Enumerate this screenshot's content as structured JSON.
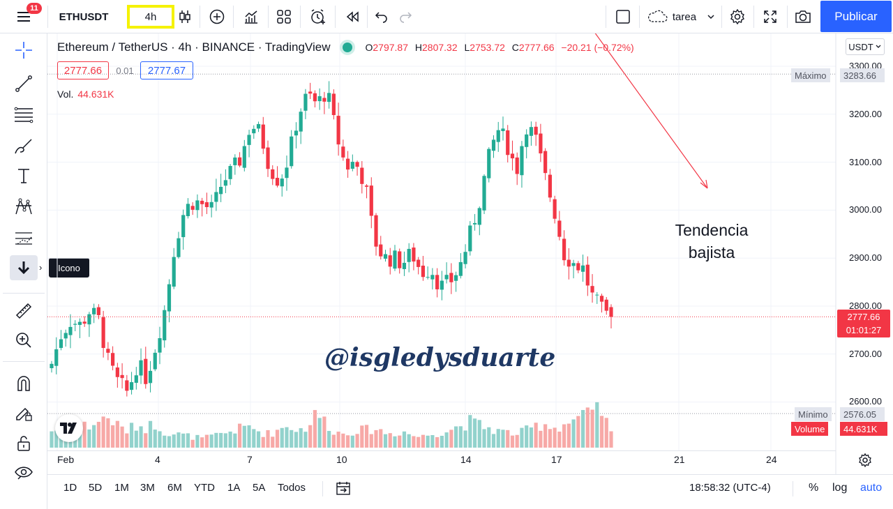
{
  "header": {
    "notification_count": "11",
    "symbol": "ETHUSDT",
    "interval": "4h",
    "template": "tarea",
    "publish_label": "Publicar"
  },
  "legend": {
    "title": "Ethereum / TetherUS · 4h · BINANCE · TradingView",
    "open_label": "O",
    "open": "2797.87",
    "high_label": "H",
    "high": "2807.32",
    "low_label": "L",
    "low": "2753.72",
    "close_label": "C",
    "close": "2777.66",
    "change": "−20.21 (−0.72%)",
    "bid": "2777.66",
    "spread": "0.01",
    "ask": "2777.67",
    "volume_label": "Vol.",
    "volume": "44.631K"
  },
  "left_toolbar": {
    "tooltip": "Icono"
  },
  "annotation": {
    "trend_line1": "Tendencia",
    "trend_line2": "bajista",
    "watermark": "@isgledysduarte"
  },
  "price_axis": {
    "currency": "USDT",
    "ticks": [
      "3300.00",
      "3200.00",
      "3100.00",
      "3000.00",
      "2900.00",
      "2800.00",
      "2700.00",
      "2600.00"
    ],
    "max_label": "Máximo",
    "max_value": "3283.66",
    "min_label": "Mínimo",
    "min_value": "2576.05",
    "current_price": "2777.66",
    "countdown": "01:01:27",
    "volume_label": "Volume",
    "volume_value": "44.631K"
  },
  "time_axis": {
    "labels": [
      "Feb",
      "4",
      "7",
      "10",
      "14",
      "17",
      "21",
      "24"
    ]
  },
  "bottom_bar": {
    "ranges": [
      "1D",
      "5D",
      "1M",
      "3M",
      "6M",
      "YTD",
      "1A",
      "5A",
      "Todos"
    ],
    "clock": "18:58:32 (UTC-4)",
    "percent": "%",
    "log": "log",
    "auto": "auto"
  },
  "colors": {
    "up": "#22ab94",
    "down": "#f23645",
    "up_volume": "#92d2cc",
    "down_volume": "#f7a9a7",
    "accent": "#2962ff",
    "interval_highlight": "#f5f200"
  },
  "chart_data": {
    "type": "candlestick",
    "price_range": [
      2560,
      3320
    ],
    "close_path": [
      2680,
      2740,
      2770,
      2760,
      2790,
      2770,
      2680,
      2640,
      2620,
      2680,
      2650,
      2720,
      2800,
      2930,
      3000,
      3020,
      3010,
      3000,
      3060,
      3080,
      3110,
      3180,
      3160,
      3090,
      3060,
      3110,
      3200,
      3240,
      3220,
      3250,
      3160,
      3090,
      3100,
      3060,
      2940,
      2900,
      2900,
      2890,
      2910,
      2870,
      2880,
      2840,
      2850,
      2880,
      2940,
      3010,
      3100,
      3170,
      3140,
      3080,
      3180,
      3150,
      3070,
      3000,
      2910,
      2890,
      2880,
      2820,
      2790,
      2777.66
    ],
    "volume_path": [
      22,
      25,
      18,
      30,
      28,
      35,
      40,
      28,
      22,
      30,
      26,
      32,
      20,
      18,
      16,
      14,
      12,
      15,
      18,
      22,
      25,
      28,
      20,
      18,
      24,
      30,
      22,
      28,
      45,
      32,
      20,
      18,
      24,
      22,
      26,
      20,
      18,
      22,
      16,
      14,
      18,
      20,
      24,
      28,
      34,
      30,
      26,
      22,
      20,
      18,
      22,
      28,
      32,
      26,
      30,
      36,
      40,
      44,
      48,
      18
    ]
  }
}
